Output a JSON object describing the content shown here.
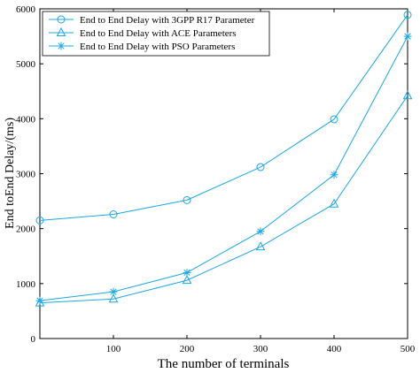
{
  "chart_data": {
    "type": "line",
    "title": "",
    "xlabel": "The number of terminals",
    "ylabel": "End toEnd Delay/(ms)",
    "x": [
      0,
      100,
      200,
      300,
      400,
      500
    ],
    "xlim": [
      0,
      500
    ],
    "ylim": [
      0,
      6000
    ],
    "xticks": [
      100,
      200,
      300,
      400,
      500
    ],
    "yticks": [
      0,
      1000,
      2000,
      3000,
      4000,
      5000,
      6000
    ],
    "grid": false,
    "legend_position": "top-left",
    "line_color": "#1ea7e1",
    "series": [
      {
        "name": "End to End Delay with 3GPP R17 Parameter",
        "marker": "circle",
        "values": [
          2150,
          2260,
          2520,
          3120,
          3990,
          5890
        ]
      },
      {
        "name": "End to End Delay with ACE Parameters",
        "marker": "triangle",
        "values": [
          650,
          720,
          1060,
          1670,
          2450,
          4420
        ]
      },
      {
        "name": "End to End Delay with PSO Parameters",
        "marker": "asterisk",
        "values": [
          690,
          850,
          1200,
          1950,
          2980,
          5500
        ]
      }
    ]
  }
}
